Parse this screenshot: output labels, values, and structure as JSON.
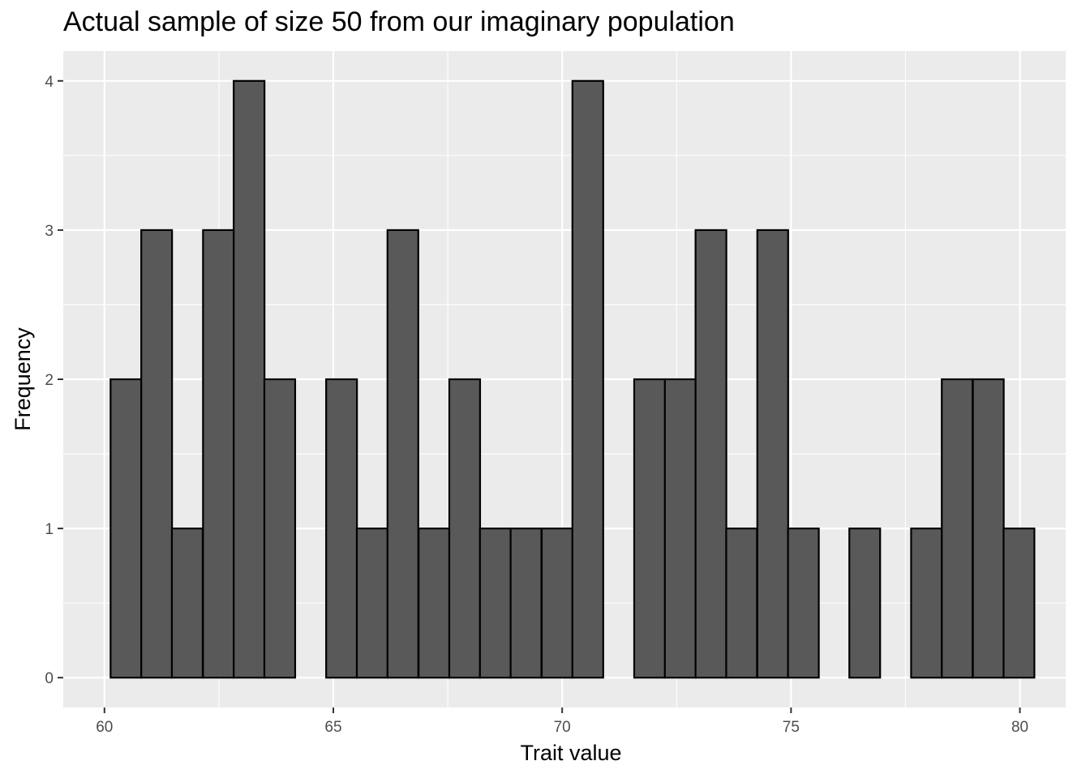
{
  "chart_data": {
    "type": "bar",
    "title": "Actual sample of size 50 from our imaginary population",
    "xlabel": "Trait value",
    "ylabel": "Frequency",
    "xlim": [
      59.1,
      81.0
    ],
    "ylim": [
      -0.2,
      4.2
    ],
    "x_ticks": [
      60,
      65,
      70,
      75,
      80
    ],
    "y_ticks": [
      0,
      1,
      2,
      3,
      4
    ],
    "bin_width": 0.673,
    "bin_centers": [
      60.47,
      61.14,
      61.81,
      62.49,
      63.16,
      63.83,
      64.51,
      65.18,
      65.85,
      66.52,
      67.2,
      67.87,
      68.54,
      69.21,
      69.89,
      70.56,
      71.23,
      71.91,
      72.58,
      73.25,
      73.92,
      74.6,
      75.27,
      75.94,
      76.61,
      77.29,
      77.96,
      78.63,
      79.31,
      79.98
    ],
    "values": [
      2,
      3,
      1,
      3,
      4,
      2,
      0,
      2,
      1,
      3,
      1,
      2,
      1,
      1,
      1,
      4,
      0,
      2,
      2,
      3,
      1,
      3,
      1,
      0,
      1,
      0,
      1,
      2,
      2,
      1
    ],
    "bar_fill": "#595959",
    "bar_stroke": "#000000",
    "panel_background": "#ebebeb",
    "grid": true
  }
}
